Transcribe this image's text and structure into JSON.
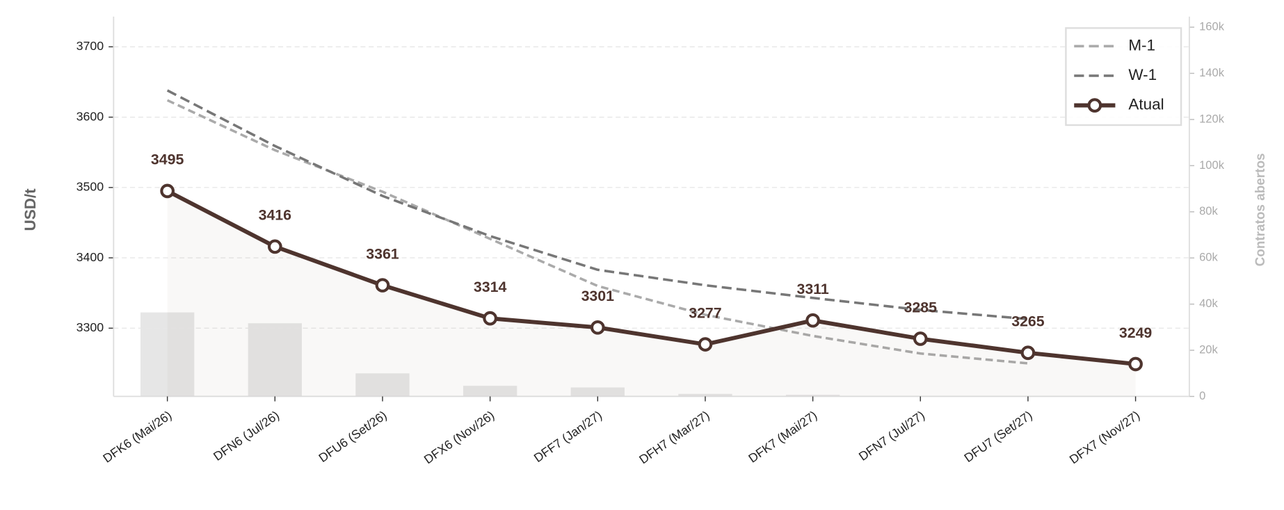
{
  "chart_data": {
    "type": "line",
    "categories": [
      "DFK6 (Mai/26)",
      "DFN6 (Jul/26)",
      "DFU6 (Set/26)",
      "DFX6 (Nov/26)",
      "DFF7 (Jan/27)",
      "DFH7 (Mar/27)",
      "DFK7 (Mai/27)",
      "DFN7 (Jul/27)",
      "DFU7 (Set/27)",
      "DFX7 (Nov/27)"
    ],
    "ylabel": "USD/t",
    "y2label": "Contratos abertos",
    "ylim": [
      3203,
      3743
    ],
    "yticks": [
      3300,
      3400,
      3500,
      3600,
      3700
    ],
    "y2lim": [
      0,
      164600
    ],
    "y2ticks": [
      0,
      {
        "value": 20000,
        "label": "20k"
      },
      {
        "value": 40000,
        "label": "40k"
      },
      {
        "value": 60000,
        "label": "60k"
      },
      {
        "value": 80000,
        "label": "80k"
      },
      {
        "value": 100000,
        "label": "100k"
      },
      {
        "value": 120000,
        "label": "120k"
      },
      {
        "value": 140000,
        "label": "140k"
      },
      {
        "value": 160000,
        "label": "160k"
      }
    ],
    "grid": true,
    "legend": "upper right",
    "series": [
      {
        "name": "M-1",
        "color": "#aaaaaa",
        "linestyle": "dashed",
        "values": [
          3624,
          3553,
          3494,
          3427,
          3360,
          3319,
          3289,
          3264,
          3250,
          null
        ]
      },
      {
        "name": "W-1",
        "color": "#777777",
        "linestyle": "dashed",
        "values": [
          3638,
          3559,
          3488,
          3431,
          3383,
          3361,
          3343,
          3326,
          3313,
          null
        ]
      },
      {
        "name": "Atual",
        "color": "#4e342e",
        "linestyle": "solid",
        "marker": "o",
        "data_labels": true,
        "values": [
          3495,
          3416,
          3361,
          3314,
          3301,
          3277,
          3311,
          3285,
          3265,
          3249
        ]
      },
      {
        "type": "bar",
        "axis": "y2",
        "color": "#e6e6e6",
        "values": [
          36400,
          31700,
          10000,
          4600,
          3900,
          1100,
          700,
          0,
          0,
          0
        ]
      }
    ]
  }
}
